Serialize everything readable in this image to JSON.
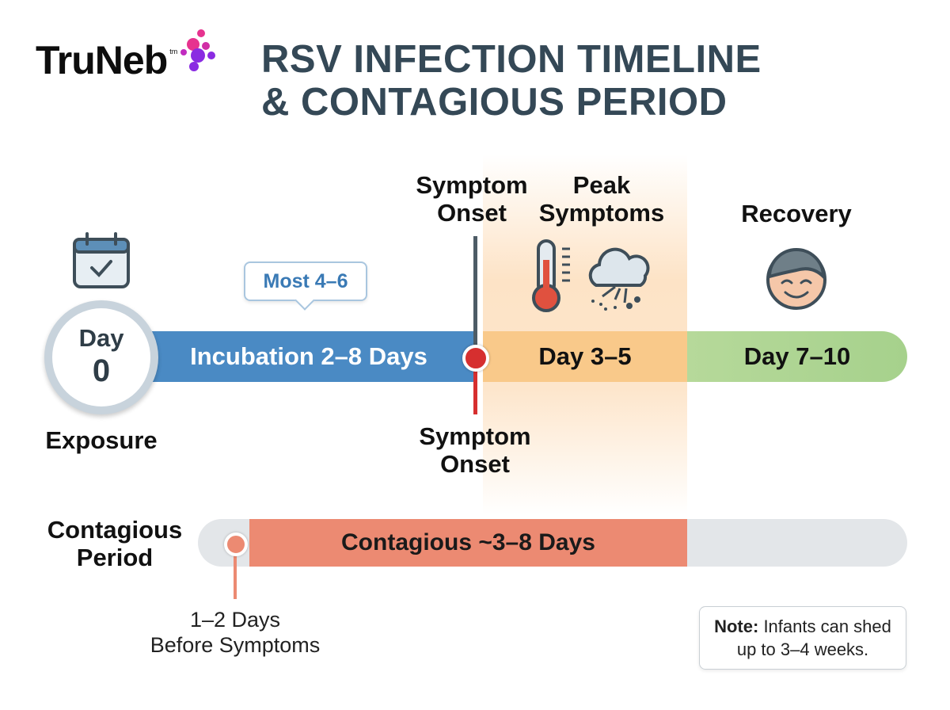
{
  "logo": {
    "text": "TruNeb",
    "tm": "tm"
  },
  "title": {
    "line1": "RSV INFECTION TIMELINE",
    "line2": "& CONTAGIOUS PERIOD"
  },
  "day0": {
    "label": "Day",
    "number": "0",
    "caption": "Exposure"
  },
  "tooltip": "Most 4–6",
  "segments": {
    "incubation": "Incubation 2–8 Days",
    "peak": "Day 3–5",
    "recovery": "Day 7–10"
  },
  "labels": {
    "symptom_onset_top": [
      "Symptom",
      "Onset"
    ],
    "peak_symptoms": [
      "Peak",
      "Symptoms"
    ],
    "recovery": "Recovery",
    "symptom_onset_bottom": [
      "Symptom",
      "Onset"
    ]
  },
  "contagious": {
    "label": [
      "Contagious",
      "Period"
    ],
    "bar": "Contagious ~3–8 Days",
    "before": [
      "1–2 Days",
      "Before Symptoms"
    ]
  },
  "note": {
    "bold": "Note:",
    "text": " Infants can shed",
    "line2": "up to 3–4 weeks."
  },
  "icons": [
    "calendar-check-icon",
    "thermometer-icon",
    "cough-cloud-icon",
    "smiling-face-icon"
  ],
  "colors": {
    "incubation": "#4a8ac4",
    "peak": "#f9c98a",
    "recovery": "#a6d18c",
    "contagious": "#ec8a72",
    "onset": "#d62f2f",
    "title": "#344856"
  }
}
